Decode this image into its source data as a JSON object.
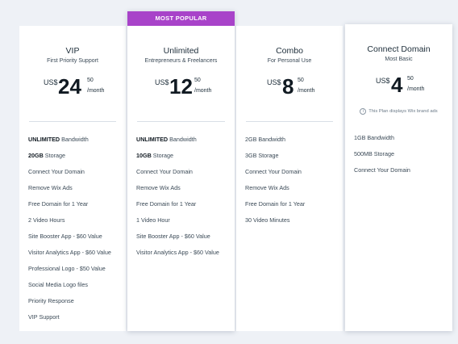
{
  "colors": {
    "accent": "#a843c9",
    "page_background": "#eef1f6",
    "card_background": "#ffffff"
  },
  "plans": [
    {
      "name": "VIP",
      "tagline": "First Priority Support",
      "currency": "US$",
      "amount": "24",
      "cents": "50",
      "period": "/month",
      "features": [
        {
          "bold": "UNLIMITED",
          "text": " Bandwidth"
        },
        {
          "bold": "20GB",
          "text": " Storage"
        },
        {
          "bold": "",
          "text": "Connect Your Domain"
        },
        {
          "bold": "",
          "text": "Remove Wix Ads"
        },
        {
          "bold": "",
          "text": "Free Domain for 1 Year"
        },
        {
          "bold": "",
          "text": "2 Video Hours"
        },
        {
          "bold": "",
          "text": "Site Booster App - $60 Value"
        },
        {
          "bold": "",
          "text": "Visitor Analytics App - $60 Value"
        },
        {
          "bold": "",
          "text": "Professional Logo - $50 Value"
        },
        {
          "bold": "",
          "text": "Social Media Logo files"
        },
        {
          "bold": "",
          "text": "Priority Response"
        },
        {
          "bold": "",
          "text": "VIP Support"
        }
      ]
    },
    {
      "name": "Unlimited",
      "ribbon": "MOST POPULAR",
      "tagline": "Entrepreneurs & Freelancers",
      "currency": "US$",
      "amount": "12",
      "cents": "50",
      "period": "/month",
      "features": [
        {
          "bold": "UNLIMITED",
          "text": " Bandwidth"
        },
        {
          "bold": "10GB",
          "text": " Storage"
        },
        {
          "bold": "",
          "text": "Connect Your Domain"
        },
        {
          "bold": "",
          "text": "Remove Wix Ads"
        },
        {
          "bold": "",
          "text": "Free Domain for 1 Year"
        },
        {
          "bold": "",
          "text": "1 Video Hour"
        },
        {
          "bold": "",
          "text": "Site Booster App - $60 Value"
        },
        {
          "bold": "",
          "text": "Visitor Analytics App - $60 Value"
        }
      ]
    },
    {
      "name": "Combo",
      "tagline": "For Personal Use",
      "currency": "US$",
      "amount": "8",
      "cents": "50",
      "period": "/month",
      "features": [
        {
          "bold": "",
          "text": "2GB Bandwidth"
        },
        {
          "bold": "",
          "text": "3GB Storage"
        },
        {
          "bold": "",
          "text": "Connect Your Domain"
        },
        {
          "bold": "",
          "text": "Remove Wix Ads"
        },
        {
          "bold": "",
          "text": "Free Domain for 1 Year"
        },
        {
          "bold": "",
          "text": "30 Video Minutes"
        }
      ]
    },
    {
      "name": "Connect Domain",
      "tagline": "Most Basic",
      "currency": "US$",
      "amount": "4",
      "cents": "50",
      "period": "/month",
      "notice": "This Plan displays Wix brand ads",
      "notice_icon": "info-icon",
      "features": [
        {
          "bold": "",
          "text": "1GB Bandwidth"
        },
        {
          "bold": "",
          "text": "500MB Storage"
        },
        {
          "bold": "",
          "text": "Connect Your Domain"
        }
      ]
    }
  ]
}
